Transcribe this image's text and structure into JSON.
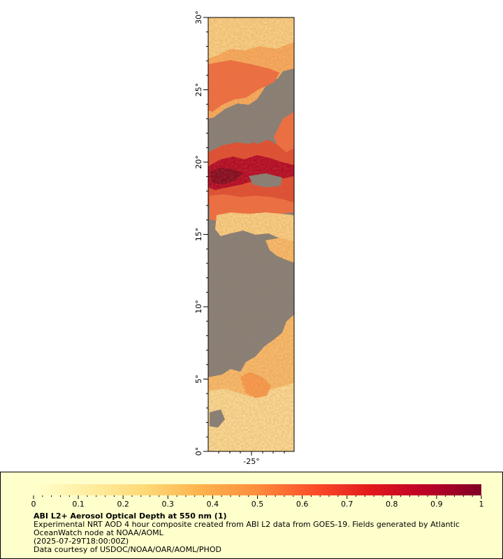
{
  "map": {
    "lon_ticks": [
      {
        "value": -25,
        "label": "-25°"
      }
    ],
    "lat_ticks": [
      {
        "value": 0,
        "label": "0°"
      },
      {
        "value": 5,
        "label": "5°"
      },
      {
        "value": 10,
        "label": "10°"
      },
      {
        "value": 15,
        "label": "15°"
      },
      {
        "value": 20,
        "label": "20°"
      },
      {
        "value": 25,
        "label": "25°"
      },
      {
        "value": 30,
        "label": "30°"
      }
    ],
    "lat_range": [
      0,
      30
    ],
    "land_mask_color": "#808080"
  },
  "legend": {
    "title": "ABI L2+ Aerosol Optical Depth at 550 nm (1)",
    "description_line1": "Experimental NRT AOD 4 hour composite created from ABI L2 data from GOES-19. Fields generated by Atlantic",
    "description_line2": "OceanWatch node at NOAA/AOML",
    "time": "(2025-07-29T18:00:00Z)",
    "credit": "Data courtesy of USDOC/NOAA/OAR/AOML/PHOD",
    "range": [
      0,
      1
    ],
    "ticks": [
      {
        "value": 0,
        "label": "0"
      },
      {
        "value": 0.1,
        "label": "0.1"
      },
      {
        "value": 0.2,
        "label": "0.2"
      },
      {
        "value": 0.3,
        "label": "0.3"
      },
      {
        "value": 0.4,
        "label": "0.4"
      },
      {
        "value": 0.5,
        "label": "0.5"
      },
      {
        "value": 0.6,
        "label": "0.6"
      },
      {
        "value": 0.7,
        "label": "0.7"
      },
      {
        "value": 0.8,
        "label": "0.8"
      },
      {
        "value": 0.9,
        "label": "0.9"
      },
      {
        "value": 1,
        "label": "1"
      }
    ],
    "colors": [
      "#ffffcc",
      "#ffeda0",
      "#fed976",
      "#feb24c",
      "#fd8d3c",
      "#fc4e2a",
      "#e31a1c",
      "#bd0026",
      "#800026"
    ]
  }
}
